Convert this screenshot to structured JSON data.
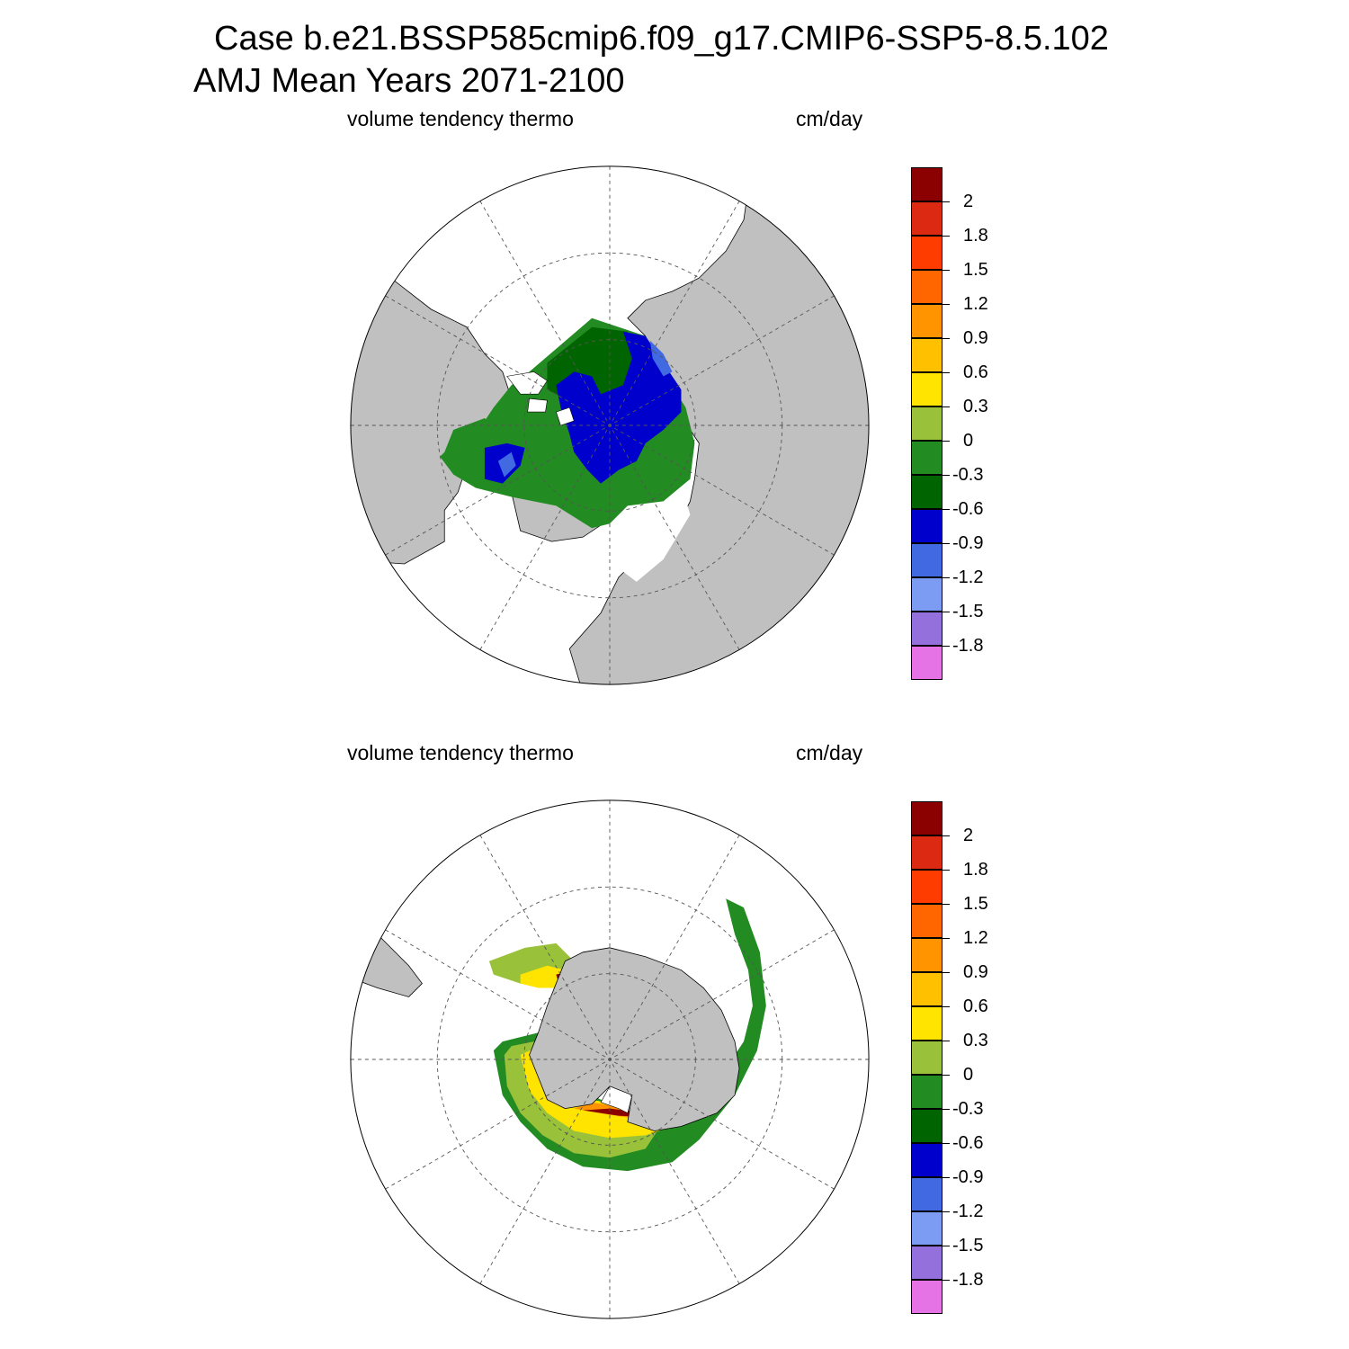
{
  "title_line1": "Case b.e21.BSSP585cmip6.f09_g17.CMIP6-SSP5-8.5.102",
  "title_line2": "AMJ Mean    Years 2071-2100",
  "panels": [
    {
      "variable": "volume tendency thermo",
      "units": "cm/day",
      "hemisphere": "north"
    },
    {
      "variable": "volume tendency thermo",
      "units": "cm/day",
      "hemisphere": "south"
    }
  ],
  "colorbar": {
    "labels": [
      "2",
      "1.8",
      "1.5",
      "1.2",
      "0.9",
      "0.6",
      "0.3",
      "0",
      "-0.3",
      "-0.6",
      "-0.9",
      "-1.2",
      "-1.5",
      "-1.8"
    ],
    "colors": [
      "#8b0000",
      "#dc2a12",
      "#ff3c00",
      "#ff6600",
      "#ff9400",
      "#ffc000",
      "#ffe400",
      "#9ac13a",
      "#228b22",
      "#006400",
      "#0000cd",
      "#4169e1",
      "#7b9cf2",
      "#9370db",
      "#e673e6"
    ]
  },
  "palette": {
    "land": "#c0c0c0",
    "ocean": "#ffffff"
  }
}
